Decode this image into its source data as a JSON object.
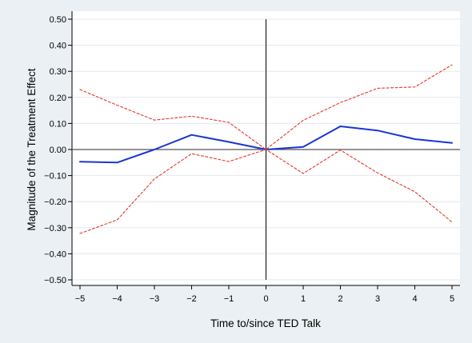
{
  "chart_data": {
    "type": "line",
    "xlabel": "Time to/since TED Talk",
    "ylabel": "Magnitude of the Treatment Effect",
    "xlim": [
      -5,
      5
    ],
    "ylim": [
      -0.5,
      0.5
    ],
    "xticks": [
      "−5",
      "−4",
      "−3",
      "−2",
      "−1",
      "0",
      "1",
      "2",
      "3",
      "4",
      "5"
    ],
    "yticks": [
      "−0.50",
      "−0.40",
      "−0.30",
      "−0.20",
      "−0.10",
      "0.00",
      "0.10",
      "0.20",
      "0.30",
      "0.40",
      "0.50"
    ],
    "grid": true,
    "reference_lines": {
      "horizontal_y": 0,
      "vertical_x": 0
    },
    "x": [
      -5,
      -4,
      -3,
      -2,
      -1,
      0,
      1,
      2,
      3,
      4,
      5
    ],
    "series": [
      {
        "role": "estimate",
        "style": "solid",
        "color": "#1a35d6",
        "values": [
          -0.047,
          -0.05,
          0.0,
          0.056,
          0.029,
          0.0,
          0.01,
          0.089,
          0.073,
          0.04,
          0.025
        ]
      },
      {
        "role": "upper_ci",
        "style": "dashed",
        "color": "#e0392a",
        "values": [
          0.23,
          0.17,
          0.113,
          0.128,
          0.104,
          0.0,
          0.112,
          0.18,
          0.235,
          0.24,
          0.325
        ]
      },
      {
        "role": "lower_ci",
        "style": "dashed",
        "color": "#e0392a",
        "values": [
          -0.322,
          -0.27,
          -0.113,
          -0.016,
          -0.046,
          0.0,
          -0.092,
          -0.002,
          -0.09,
          -0.162,
          -0.278
        ]
      }
    ]
  }
}
